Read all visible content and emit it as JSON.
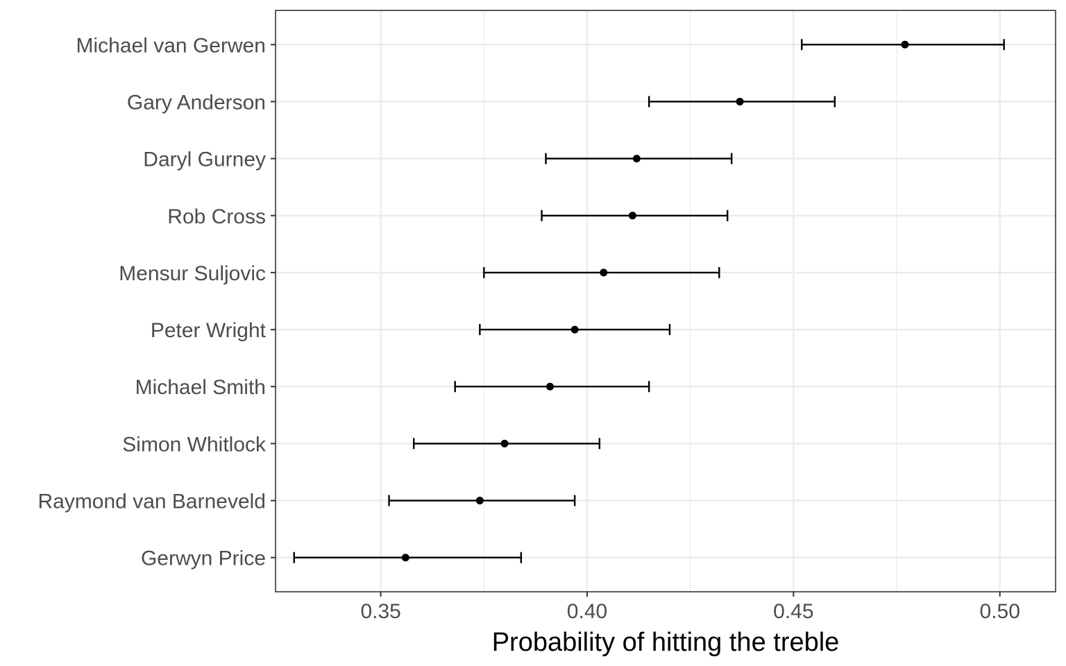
{
  "chart_data": {
    "type": "scatter",
    "subtype": "dot-with-error-bars",
    "title": "",
    "xlabel": "Probability of hitting the treble",
    "ylabel": "",
    "xlim": [
      0.3245,
      0.5135
    ],
    "x_ticks": [
      0.35,
      0.4,
      0.45,
      0.5
    ],
    "x_tick_labels": [
      "0.35",
      "0.40",
      "0.45",
      "0.50"
    ],
    "grid": true,
    "legend": "none",
    "colors": {
      "points": "#000000",
      "grid": "#ebebeb",
      "panel_border": "#333333"
    },
    "categories": [
      "Michael van Gerwen",
      "Gary Anderson",
      "Daryl Gurney",
      "Rob Cross",
      "Mensur Suljovic",
      "Peter Wright",
      "Michael Smith",
      "Simon Whitlock",
      "Raymond van Barneveld",
      "Gerwyn Price"
    ],
    "points": [
      {
        "player": "Michael van Gerwen",
        "estimate": 0.477,
        "lower": 0.452,
        "upper": 0.501
      },
      {
        "player": "Gary Anderson",
        "estimate": 0.437,
        "lower": 0.415,
        "upper": 0.46
      },
      {
        "player": "Daryl Gurney",
        "estimate": 0.412,
        "lower": 0.39,
        "upper": 0.435
      },
      {
        "player": "Rob Cross",
        "estimate": 0.411,
        "lower": 0.389,
        "upper": 0.434
      },
      {
        "player": "Mensur Suljovic",
        "estimate": 0.404,
        "lower": 0.375,
        "upper": 0.432
      },
      {
        "player": "Peter Wright",
        "estimate": 0.397,
        "lower": 0.374,
        "upper": 0.42
      },
      {
        "player": "Michael Smith",
        "estimate": 0.391,
        "lower": 0.368,
        "upper": 0.415
      },
      {
        "player": "Simon Whitlock",
        "estimate": 0.38,
        "lower": 0.358,
        "upper": 0.403
      },
      {
        "player": "Raymond van Barneveld",
        "estimate": 0.374,
        "lower": 0.352,
        "upper": 0.397
      },
      {
        "player": "Gerwyn Price",
        "estimate": 0.356,
        "lower": 0.329,
        "upper": 0.384
      }
    ]
  }
}
